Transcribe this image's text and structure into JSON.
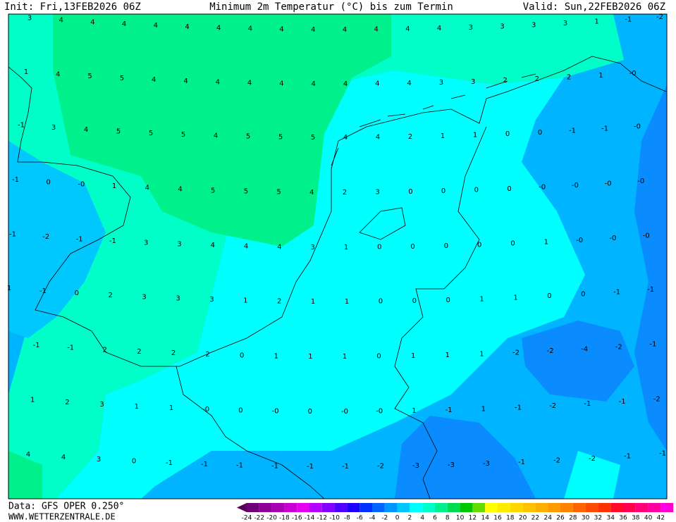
{
  "header": {
    "init": "Init: Fri,13FEB2026 06Z",
    "title": "Minimum 2m Temperatur (°C) bis zum Termin",
    "valid": "Valid: Sun,22FEB2026 06Z"
  },
  "footer": {
    "data": "Data: GFS OPER 0.250°",
    "site": "WWW.WETTERZENTRALE.DE"
  },
  "map": {
    "rows": [
      [
        3,
        4,
        4,
        4,
        4,
        4,
        4,
        4,
        4,
        4,
        4,
        4,
        4,
        4,
        3,
        3,
        3,
        3,
        1,
        -1,
        -2
      ],
      [
        1,
        4,
        5,
        5,
        4,
        4,
        4,
        4,
        4,
        4,
        4,
        4,
        4,
        3,
        3,
        2,
        2,
        2,
        1,
        {
          "value": 0,
          "label": "-0"
        }
      ],
      [
        -1,
        3,
        4,
        5,
        5,
        5,
        4,
        5,
        5,
        5,
        4,
        4,
        2,
        1,
        1,
        0,
        0,
        -1,
        -1,
        {
          "value": 0,
          "label": "-0"
        }
      ],
      [
        -1,
        0,
        {
          "value": 0,
          "label": "-0"
        },
        1,
        4,
        4,
        5,
        5,
        5,
        4,
        2,
        3,
        0,
        0,
        0,
        0,
        {
          "value": 0,
          "label": "-0"
        },
        {
          "value": 0,
          "label": "-0"
        },
        {
          "value": 0,
          "label": "-0"
        },
        {
          "value": 0,
          "label": "-0"
        }
      ],
      [
        -1,
        -2,
        -1,
        -1,
        3,
        3,
        4,
        4,
        4,
        3,
        1,
        0,
        0,
        0,
        0,
        0,
        1,
        {
          "value": 0,
          "label": "-0"
        },
        {
          "value": 0,
          "label": "-0"
        },
        {
          "value": 0,
          "label": "-0"
        }
      ],
      [
        1,
        -1,
        0,
        2,
        3,
        3,
        3,
        1,
        2,
        1,
        1,
        0,
        0,
        0,
        1,
        1,
        0,
        0,
        -1,
        -1
      ],
      [
        null,
        -1,
        -1,
        2,
        2,
        2,
        2,
        0,
        1,
        1,
        1,
        0,
        1,
        1,
        1,
        -2,
        -2,
        -4,
        -2,
        -1
      ],
      [
        null,
        1,
        2,
        3,
        1,
        1,
        {
          "value": 0,
          "label": "-0"
        },
        0,
        {
          "value": 0,
          "label": "-0"
        },
        0,
        {
          "value": 0,
          "label": "-0"
        },
        {
          "value": 0,
          "label": "-0"
        },
        1,
        -1,
        1,
        -1,
        -2,
        -1,
        -1,
        -2
      ],
      [
        4,
        4,
        3,
        0,
        -1,
        -1,
        -1,
        -1,
        -1,
        -1,
        -2,
        -3,
        -3,
        -3,
        -1,
        -2,
        -2,
        -1,
        -1
      ]
    ]
  },
  "legend": {
    "ticks": [
      -24,
      -22,
      -20,
      -18,
      -16,
      -14,
      -12,
      -10,
      -8,
      -6,
      -4,
      -2,
      0,
      2,
      4,
      6,
      8,
      10,
      12,
      14,
      16,
      18,
      20,
      22,
      24,
      26,
      28,
      30,
      32,
      34,
      36,
      38,
      40,
      42
    ],
    "colors": [
      "#55005a",
      "#6e0078",
      "#8c0096",
      "#aa00b4",
      "#c800d2",
      "#e600f0",
      "#b400ff",
      "#8200ff",
      "#5000ff",
      "#1e00ff",
      "#0032ff",
      "#0064ff",
      "#0096ff",
      "#00c8ff",
      "#00ffff",
      "#00ffc8",
      "#00f08c",
      "#00dc50",
      "#00c800",
      "#64dc00",
      "#ffff00",
      "#ffeb00",
      "#ffd700",
      "#ffc300",
      "#ffaf00",
      "#ff9b00",
      "#ff8200",
      "#ff6400",
      "#ff4b00",
      "#ff3200",
      "#ff0a28",
      "#ff0050",
      "#ff0078",
      "#ff00a0",
      "#ff00c8",
      "#ff00f0"
    ]
  }
}
